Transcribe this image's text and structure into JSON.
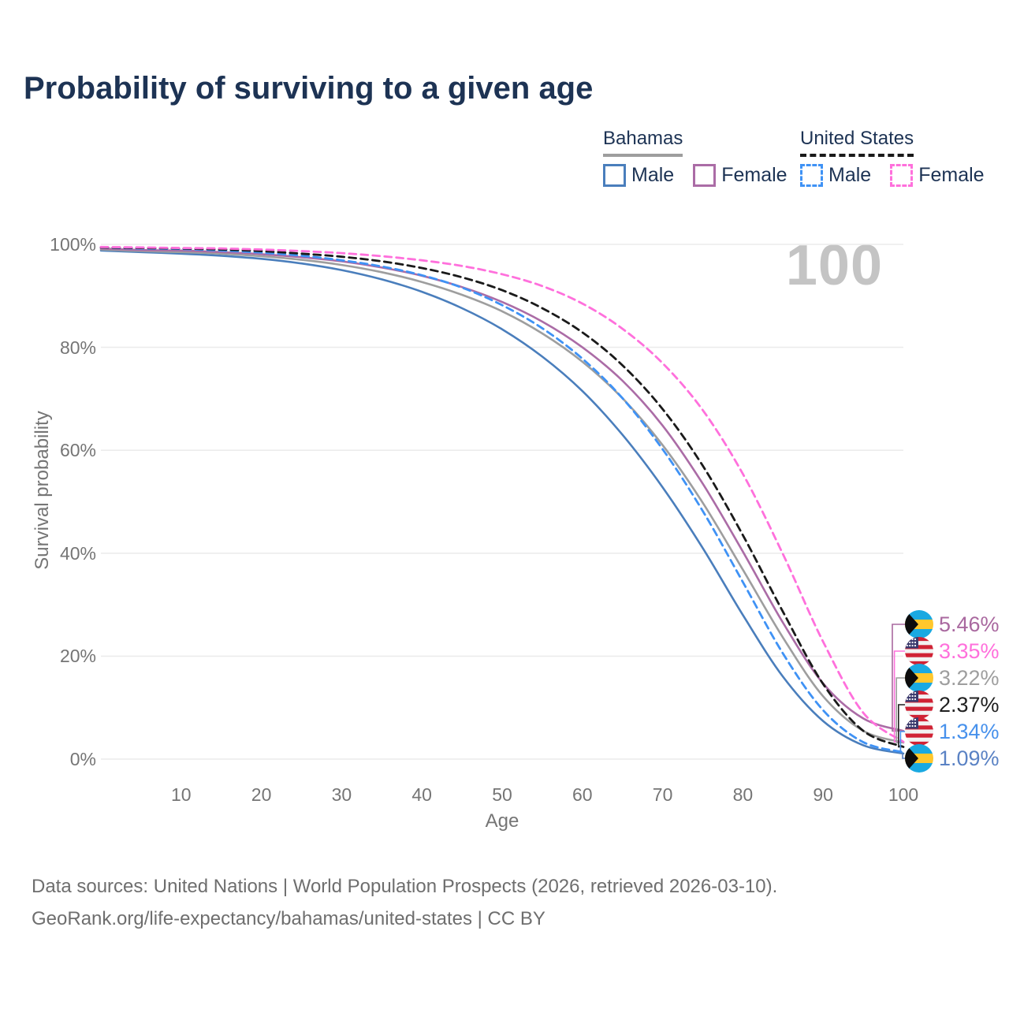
{
  "title": "Probability of surviving to a given age",
  "watermark_age": "100",
  "legend": {
    "groups": [
      {
        "title": "Bahamas",
        "line_style": "solid",
        "underline_color": "#9e9e9e",
        "items": [
          {
            "label": "Male",
            "color": "#4a7ebc"
          },
          {
            "label": "Female",
            "color": "#ab6ca6"
          }
        ]
      },
      {
        "title": "United States",
        "line_style": "dashed",
        "underline_color": "#1a1a1a",
        "items": [
          {
            "label": "Male",
            "color": "#3f92f5"
          },
          {
            "label": "Female",
            "color": "#ff70dc"
          }
        ]
      }
    ]
  },
  "chart_data": {
    "type": "line",
    "title": "Probability of surviving to a given age",
    "xlabel": "Age",
    "ylabel": "Survival probability",
    "xlim": [
      0,
      100
    ],
    "ylim": [
      0,
      100
    ],
    "grid": "horizontal",
    "x_ticks": [
      "10",
      "20",
      "30",
      "40",
      "50",
      "60",
      "70",
      "80",
      "90",
      "100"
    ],
    "x_tick_values": [
      10,
      20,
      30,
      40,
      50,
      60,
      70,
      80,
      90,
      100
    ],
    "y_ticks": [
      "0%",
      "20%",
      "40%",
      "60%",
      "80%",
      "100%"
    ],
    "y_tick_values": [
      0,
      20,
      40,
      60,
      80,
      100
    ],
    "x": [
      0,
      5,
      10,
      15,
      20,
      25,
      30,
      35,
      40,
      45,
      50,
      55,
      60,
      65,
      70,
      75,
      80,
      85,
      90,
      95,
      100
    ],
    "series": [
      {
        "name": "Bahamas Male",
        "country": "Bahamas",
        "sex": "Male",
        "color": "#4a7ebc",
        "dash": false,
        "values": [
          98.8,
          98.5,
          98.2,
          97.8,
          97.2,
          96.3,
          95.0,
          93.2,
          90.8,
          87.6,
          83.5,
          78.2,
          71.5,
          63.0,
          52.8,
          41.0,
          28.0,
          16.0,
          7.4,
          2.7,
          1.09
        ]
      },
      {
        "name": "Bahamas (both sexes)",
        "country": "Bahamas",
        "sex": "Both",
        "color": "#9e9e9e",
        "dash": false,
        "values": [
          99.0,
          98.7,
          98.5,
          98.2,
          97.7,
          97.0,
          96.0,
          94.6,
          92.7,
          90.2,
          87.0,
          82.7,
          77.2,
          70.1,
          61.0,
          49.8,
          36.8,
          23.6,
          12.2,
          5.5,
          3.22
        ]
      },
      {
        "name": "Bahamas Female",
        "country": "Bahamas",
        "sex": "Female",
        "color": "#ab6ca6",
        "dash": false,
        "values": [
          99.2,
          98.9,
          98.8,
          98.5,
          98.1,
          97.5,
          96.7,
          95.5,
          93.9,
          91.7,
          88.8,
          85.0,
          80.0,
          73.5,
          64.8,
          53.5,
          40.3,
          26.5,
          14.7,
          7.9,
          5.46
        ]
      },
      {
        "name": "United States Male",
        "country": "United States",
        "sex": "Male",
        "color": "#3f92f5",
        "dash": true,
        "values": [
          99.4,
          99.2,
          99.1,
          98.8,
          98.4,
          97.8,
          96.9,
          95.7,
          94.0,
          91.6,
          88.2,
          83.7,
          77.8,
          70.1,
          60.2,
          48.2,
          34.4,
          20.5,
          9.5,
          3.3,
          1.34
        ]
      },
      {
        "name": "United States (both sexes)",
        "country": "United States",
        "sex": "Both",
        "color": "#1a1a1a",
        "dash": true,
        "values": [
          99.4,
          99.3,
          99.2,
          99.0,
          98.7,
          98.2,
          97.6,
          96.7,
          95.4,
          93.6,
          91.1,
          87.6,
          82.9,
          76.5,
          68.0,
          57.0,
          43.5,
          28.6,
          14.6,
          5.5,
          2.37
        ]
      },
      {
        "name": "United States Female",
        "country": "United States",
        "sex": "Female",
        "color": "#ff70dc",
        "dash": true,
        "values": [
          99.5,
          99.4,
          99.3,
          99.2,
          99.0,
          98.7,
          98.3,
          97.7,
          96.9,
          95.8,
          94.2,
          91.9,
          88.5,
          83.6,
          76.9,
          67.8,
          55.4,
          39.8,
          22.8,
          9.0,
          3.35
        ]
      }
    ],
    "end_labels": [
      {
        "flag": "bahamas-flag-icon",
        "series": "Bahamas Female",
        "value": "5.46%",
        "value_num": 5.46,
        "color": "#a9689f"
      },
      {
        "flag": "us-flag-icon",
        "series": "United States Female",
        "value": "3.35%",
        "value_num": 3.35,
        "color": "#ff70dc"
      },
      {
        "flag": "bahamas-flag-icon",
        "series": "Bahamas (both sexes)",
        "value": "3.22%",
        "value_num": 3.22,
        "color": "#9e9e9e"
      },
      {
        "flag": "us-flag-icon",
        "series": "United States (both sexes)",
        "value": "2.37%",
        "value_num": 2.37,
        "color": "#1f1f1f"
      },
      {
        "flag": "us-flag-icon",
        "series": "United States Male",
        "value": "1.34%",
        "value_num": 1.34,
        "color": "#4791ec"
      },
      {
        "flag": "bahamas-flag-icon",
        "series": "Bahamas Male",
        "value": "1.09%",
        "value_num": 1.09,
        "color": "#5a82c4"
      }
    ],
    "legend_position": "top-right",
    "colors": {
      "grid": "#ececec",
      "tick_text": "#757575",
      "title_text": "#1d3354",
      "watermark": "#c4c4c4",
      "footer_text": "#6e6e6e"
    }
  },
  "footer": {
    "line1": "Data sources: United Nations | World Population Prospects (2026, retrieved 2026-03-10).",
    "line2": "GeoRank.org/life-expectancy/bahamas/united-states | CC BY"
  }
}
